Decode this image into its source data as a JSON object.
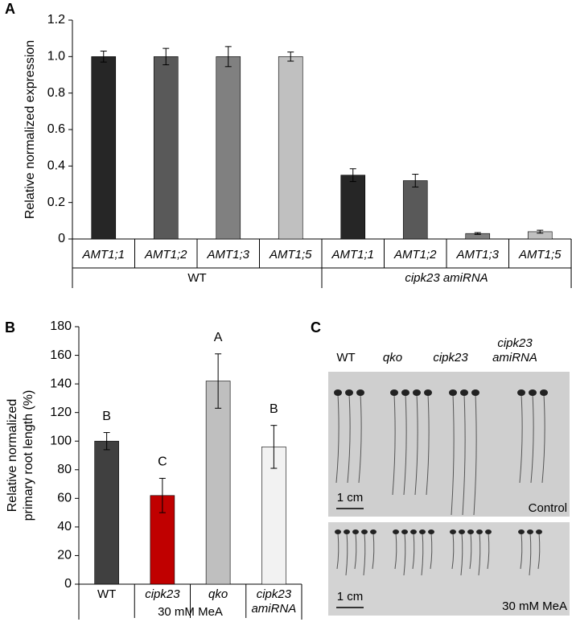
{
  "chart_data": [
    {
      "type": "bar",
      "panel_label": "A",
      "ylabel": "Relative normalized expression",
      "categories": [
        "AMT1;1",
        "AMT1;2",
        "AMT1;3",
        "AMT1;5",
        "AMT1;1",
        "AMT1;2",
        "AMT1;3",
        "AMT1;5"
      ],
      "group_labels": [
        "WT",
        "cipk23 amiRNA"
      ],
      "values": [
        1.0,
        1.0,
        1.0,
        1.0,
        0.35,
        0.32,
        0.03,
        0.04
      ],
      "errors": [
        0.03,
        0.045,
        0.055,
        0.025,
        0.035,
        0.035,
        0.005,
        0.008
      ],
      "colors": [
        "#262626",
        "#595959",
        "#808080",
        "#c0c0c0",
        "#262626",
        "#595959",
        "#808080",
        "#c0c0c0"
      ],
      "ylim": [
        0,
        1.2
      ],
      "yticks": [
        0,
        0.2,
        0.4,
        0.6,
        0.8,
        {
          "value": 1,
          "label": "1.0"
        },
        1.2
      ]
    },
    {
      "type": "bar",
      "panel_label": "B",
      "ylabel": [
        "Relative normalized",
        "primary root length (%)"
      ],
      "categories": [
        "WT",
        "cipk23",
        "qko",
        "cipk23 amiRNA"
      ],
      "group_labels": [
        "30 mM MeA"
      ],
      "values": [
        100,
        62,
        142,
        96
      ],
      "errors": [
        6,
        12,
        19,
        15
      ],
      "annotations": [
        "B",
        "C",
        "A",
        "B"
      ],
      "colors": [
        "#404040",
        "#c00000",
        "#bfbfbf",
        "#f2f2f2"
      ],
      "ylim": [
        0,
        180
      ],
      "yticks": [
        0,
        20,
        40,
        60,
        80,
        100,
        120,
        140,
        160,
        180
      ]
    }
  ],
  "panel_c": {
    "panel_label": "C",
    "genotypes": [
      "WT",
      "qko",
      "cipk23",
      "cipk23 amiRNA"
    ],
    "photos": [
      {
        "scale": "1 cm",
        "condition": "Control"
      },
      {
        "scale": "1 cm",
        "condition": "30 mM MeA"
      }
    ]
  }
}
